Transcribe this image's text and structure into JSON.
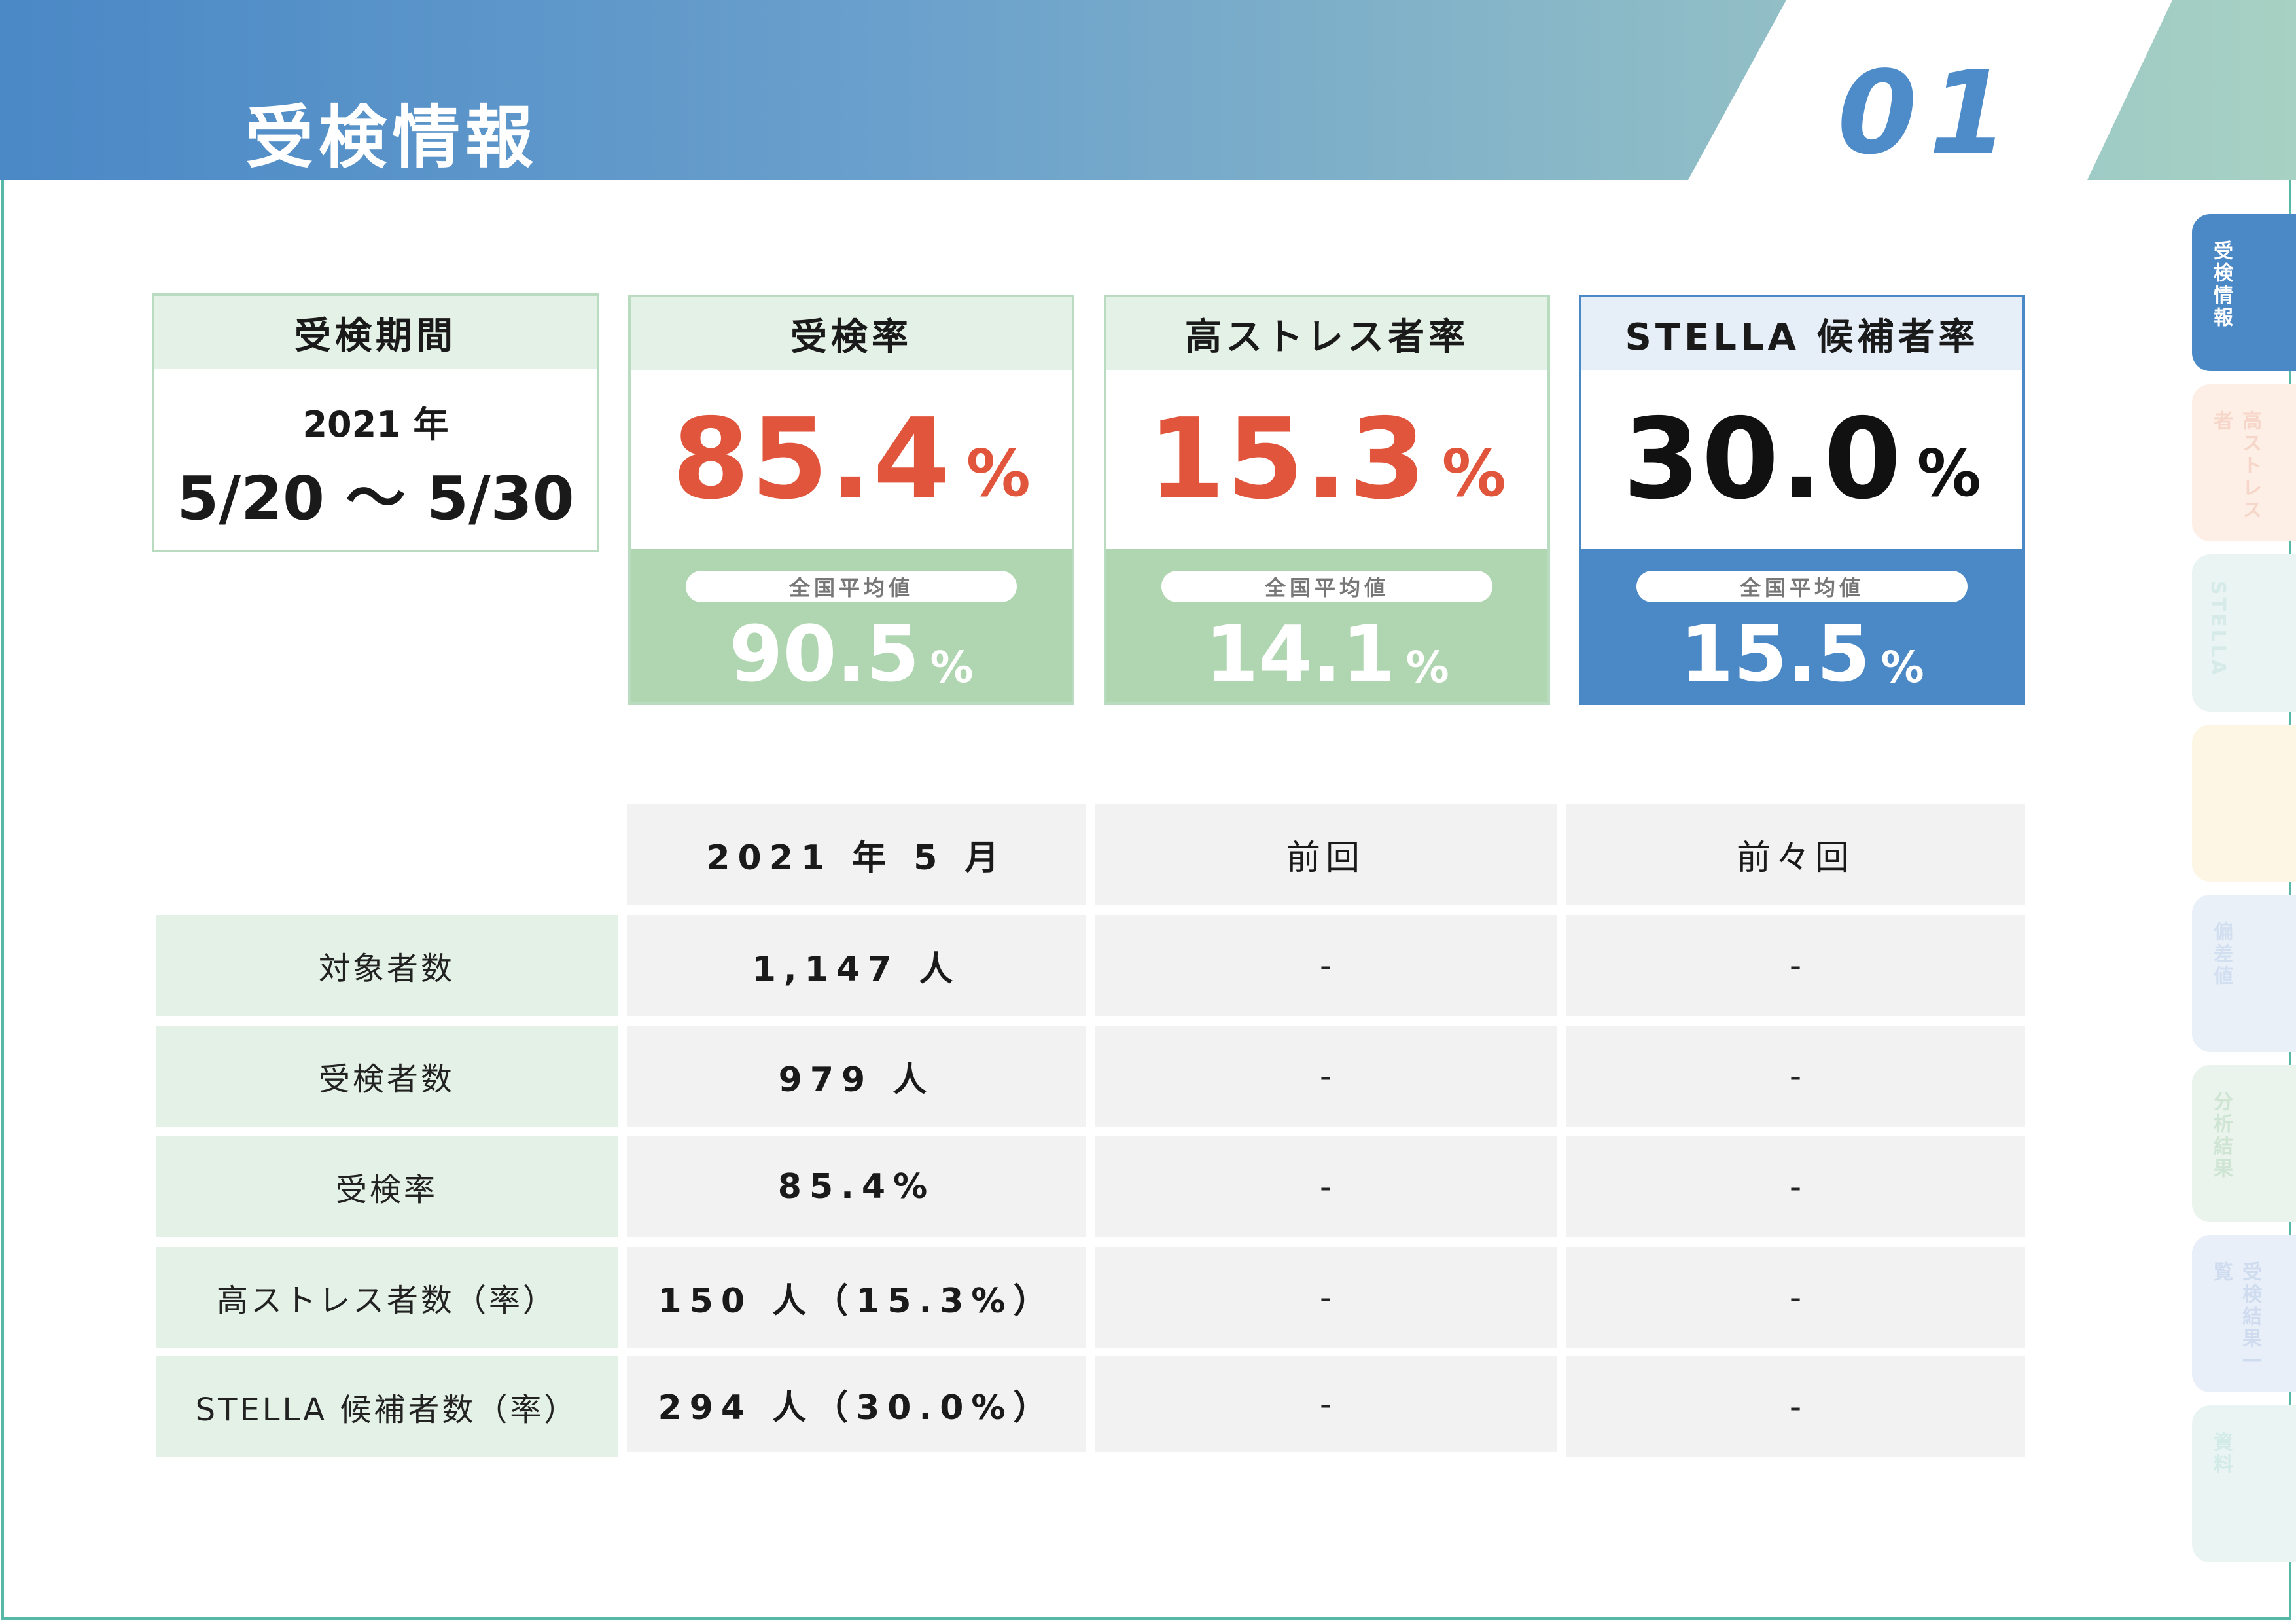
{
  "header": {
    "title": "受検情報",
    "page_number": "01"
  },
  "summary": {
    "period": {
      "label": "受検期間",
      "year": "2021 年",
      "range": "5/20 ～ 5/30"
    },
    "metrics": [
      {
        "label": "受検率",
        "value": "85.4",
        "unit": "%",
        "avg_label": "全国平均値",
        "avg_value": "90.5",
        "avg_unit": "%"
      },
      {
        "label": "高ストレス者率",
        "value": "15.3",
        "unit": "%",
        "avg_label": "全国平均値",
        "avg_value": "14.1",
        "avg_unit": "%"
      },
      {
        "label": "STELLA 候補者率",
        "value": "30.0",
        "unit": "%",
        "avg_label": "全国平均値",
        "avg_value": "15.5",
        "avg_unit": "%"
      }
    ]
  },
  "table": {
    "columns": [
      "2021 年 5 月",
      "前回",
      "前々回"
    ],
    "rows": [
      {
        "label": "対象者数",
        "values": [
          "1,147 人",
          "-",
          "-"
        ]
      },
      {
        "label": "受検者数",
        "values": [
          "979 人",
          "-",
          "-"
        ]
      },
      {
        "label": "受検率",
        "values": [
          "85.4%",
          "-",
          "-"
        ]
      },
      {
        "label": "高ストレス者数（率）",
        "values": [
          "150 人（15.3%）",
          "-",
          "-"
        ]
      },
      {
        "label": "STELLA 候補者数（率）",
        "values": [
          "294 人（30.0%）",
          "-",
          "-"
        ]
      }
    ]
  },
  "side_tabs": [
    {
      "label": "受検情報",
      "bg": "#4b88c6",
      "fg": "#ffffff"
    },
    {
      "label": "高ストレス者",
      "bg": "#fdeee6",
      "fg": "#f6d6c8"
    },
    {
      "label": "STELLA",
      "bg": "#e9f4f3",
      "fg": "#d6ebe8"
    },
    {
      "label": "",
      "bg": "#fdf6e4",
      "fg": "#f5e7c0"
    },
    {
      "label": "偏差値",
      "bg": "#eaf0f8",
      "fg": "#d2dff0"
    },
    {
      "label": "分析結果",
      "bg": "#eaf3ec",
      "fg": "#cfe5d4"
    },
    {
      "label": "受検結果一覧",
      "bg": "#e9eff8",
      "fg": "#cfdcef"
    },
    {
      "label": "資料",
      "bg": "#eaf5f3",
      "fg": "#d3ebe7"
    }
  ]
}
